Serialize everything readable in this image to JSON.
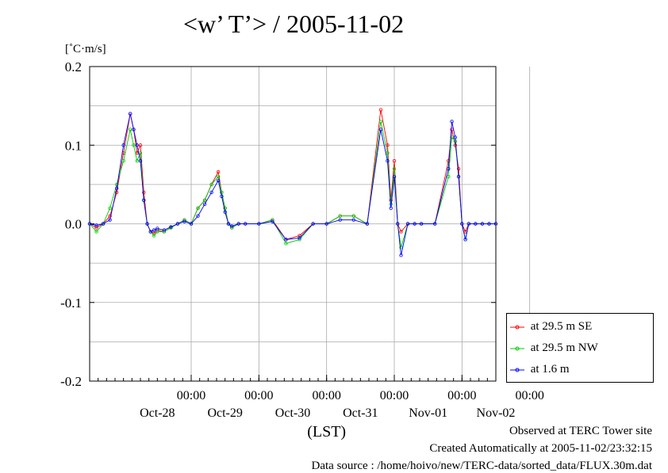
{
  "title": "<w’ T’> / 2005-11-02",
  "unit_label": "[˚C·m/s]",
  "footer": {
    "observed": "Observed at TERC Tower site",
    "created": "Created Automatically at 2005-11-02/23:32:15",
    "source": "Data source : /home/hoivo/new/TERC-data/sorted_data/FLUX.30m.dat"
  },
  "chart_data": {
    "type": "line",
    "title": "<w’ T’> / 2005-11-02",
    "ylabel": "[˚C·m/s]",
    "xlabel": "(LST)",
    "ylim": [
      -0.2,
      0.2
    ],
    "xlim": [
      -1.5,
      4.5
    ],
    "y_ticks": [
      "0.2",
      "0.1",
      "0.0",
      "-0.1",
      "-0.2"
    ],
    "y_tick_values": [
      0.2,
      0.1,
      0.0,
      -0.1,
      -0.2
    ],
    "time_tick_label": "00:00",
    "time_ticks": [
      0,
      1,
      2,
      3,
      4,
      5
    ],
    "date_labels": [
      "Oct-28",
      "Oct-29",
      "Oct-30",
      "Oct-31",
      "Nov-01",
      "Nov-02"
    ],
    "grid": true,
    "legend_position": "bottom-right",
    "series": [
      {
        "name": "at 29.5 m SE",
        "color": "#ff0000",
        "x": [
          -1.5,
          -1.4,
          -1.3,
          -1.2,
          -1.1,
          -1.0,
          -0.9,
          -0.85,
          -0.8,
          -0.75,
          -0.7,
          -0.65,
          -0.6,
          -0.55,
          -0.5,
          -0.4,
          -0.3,
          -0.2,
          -0.1,
          0.0,
          0.1,
          0.2,
          0.3,
          0.4,
          0.45,
          0.5,
          0.55,
          0.6,
          0.7,
          0.8,
          1.0,
          1.2,
          1.4,
          1.6,
          1.8,
          2.0,
          2.2,
          2.4,
          2.6,
          2.8,
          2.9,
          2.95,
          3.0,
          3.05,
          3.1,
          3.2,
          3.3,
          3.4,
          3.6,
          3.8,
          3.85,
          3.9,
          3.95,
          4.0,
          4.05,
          4.1,
          4.2,
          4.3,
          4.4,
          4.5
        ],
        "values": [
          0.0,
          -0.005,
          0.0,
          0.01,
          0.04,
          0.09,
          0.14,
          0.12,
          0.09,
          0.1,
          0.04,
          0.0,
          -0.01,
          -0.012,
          -0.008,
          -0.01,
          -0.005,
          0.0,
          0.005,
          0.0,
          0.02,
          0.03,
          0.05,
          0.066,
          0.04,
          0.02,
          0.0,
          -0.005,
          0.0,
          0.0,
          0.0,
          0.005,
          -0.02,
          -0.015,
          0.0,
          0.0,
          0.01,
          0.01,
          0.0,
          0.145,
          0.1,
          0.03,
          0.08,
          0.0,
          -0.01,
          0.0,
          0.0,
          0.0,
          0.0,
          0.08,
          0.12,
          0.1,
          0.07,
          0.0,
          -0.01,
          0.0,
          0.0,
          0.0,
          0.0,
          0.0
        ]
      },
      {
        "name": "at 29.5 m NW",
        "color": "#00cc00",
        "x": [
          -1.5,
          -1.4,
          -1.3,
          -1.2,
          -1.1,
          -1.0,
          -0.9,
          -0.85,
          -0.8,
          -0.75,
          -0.7,
          -0.65,
          -0.6,
          -0.55,
          -0.5,
          -0.4,
          -0.3,
          -0.2,
          -0.1,
          0.0,
          0.1,
          0.2,
          0.3,
          0.4,
          0.45,
          0.5,
          0.55,
          0.6,
          0.7,
          0.8,
          1.0,
          1.2,
          1.4,
          1.6,
          1.8,
          2.0,
          2.2,
          2.4,
          2.6,
          2.8,
          2.9,
          2.95,
          3.0,
          3.05,
          3.1,
          3.2,
          3.3,
          3.4,
          3.6,
          3.8,
          3.85,
          3.9,
          3.95,
          4.0,
          4.05,
          4.1,
          4.2,
          4.3,
          4.4,
          4.5
        ],
        "values": [
          0.0,
          -0.01,
          0.0,
          0.02,
          0.05,
          0.08,
          0.12,
          0.1,
          0.08,
          0.09,
          0.03,
          0.0,
          -0.01,
          -0.015,
          -0.01,
          -0.01,
          -0.005,
          0.0,
          0.005,
          0.0,
          0.02,
          0.03,
          0.05,
          0.06,
          0.04,
          0.02,
          0.0,
          -0.005,
          0.0,
          0.0,
          0.0,
          0.005,
          -0.025,
          -0.02,
          0.0,
          0.0,
          0.01,
          0.01,
          0.0,
          0.13,
          0.09,
          0.025,
          0.07,
          0.0,
          -0.03,
          0.0,
          0.0,
          0.0,
          0.0,
          0.06,
          0.11,
          0.105,
          0.06,
          0.0,
          -0.02,
          0.0,
          0.0,
          0.0,
          0.0,
          0.0
        ]
      },
      {
        "name": "at 1.6 m",
        "color": "#0000ff",
        "x": [
          -1.5,
          -1.4,
          -1.3,
          -1.2,
          -1.1,
          -1.0,
          -0.9,
          -0.85,
          -0.8,
          -0.75,
          -0.7,
          -0.65,
          -0.6,
          -0.55,
          -0.5,
          -0.4,
          -0.3,
          -0.2,
          -0.1,
          0.0,
          0.1,
          0.2,
          0.3,
          0.4,
          0.45,
          0.5,
          0.55,
          0.6,
          0.7,
          0.8,
          1.0,
          1.2,
          1.4,
          1.6,
          1.8,
          2.0,
          2.2,
          2.4,
          2.6,
          2.8,
          2.9,
          2.95,
          3.0,
          3.05,
          3.1,
          3.2,
          3.3,
          3.4,
          3.6,
          3.8,
          3.85,
          3.9,
          3.95,
          4.0,
          4.05,
          4.1,
          4.2,
          4.3,
          4.4,
          4.5
        ],
        "values": [
          0.0,
          -0.002,
          0.0,
          0.005,
          0.045,
          0.1,
          0.14,
          0.12,
          0.1,
          0.08,
          0.03,
          0.0,
          -0.01,
          -0.008,
          -0.006,
          -0.008,
          -0.004,
          0.0,
          0.003,
          0.0,
          0.01,
          0.025,
          0.04,
          0.055,
          0.035,
          0.015,
          0.0,
          -0.003,
          0.0,
          0.0,
          0.0,
          0.003,
          -0.02,
          -0.018,
          0.0,
          0.0,
          0.005,
          0.005,
          0.0,
          0.12,
          0.08,
          0.02,
          0.06,
          0.0,
          -0.04,
          0.0,
          0.0,
          0.0,
          0.0,
          0.07,
          0.13,
          0.11,
          0.06,
          0.0,
          -0.02,
          0.0,
          0.0,
          0.0,
          0.0,
          0.0
        ]
      }
    ]
  }
}
